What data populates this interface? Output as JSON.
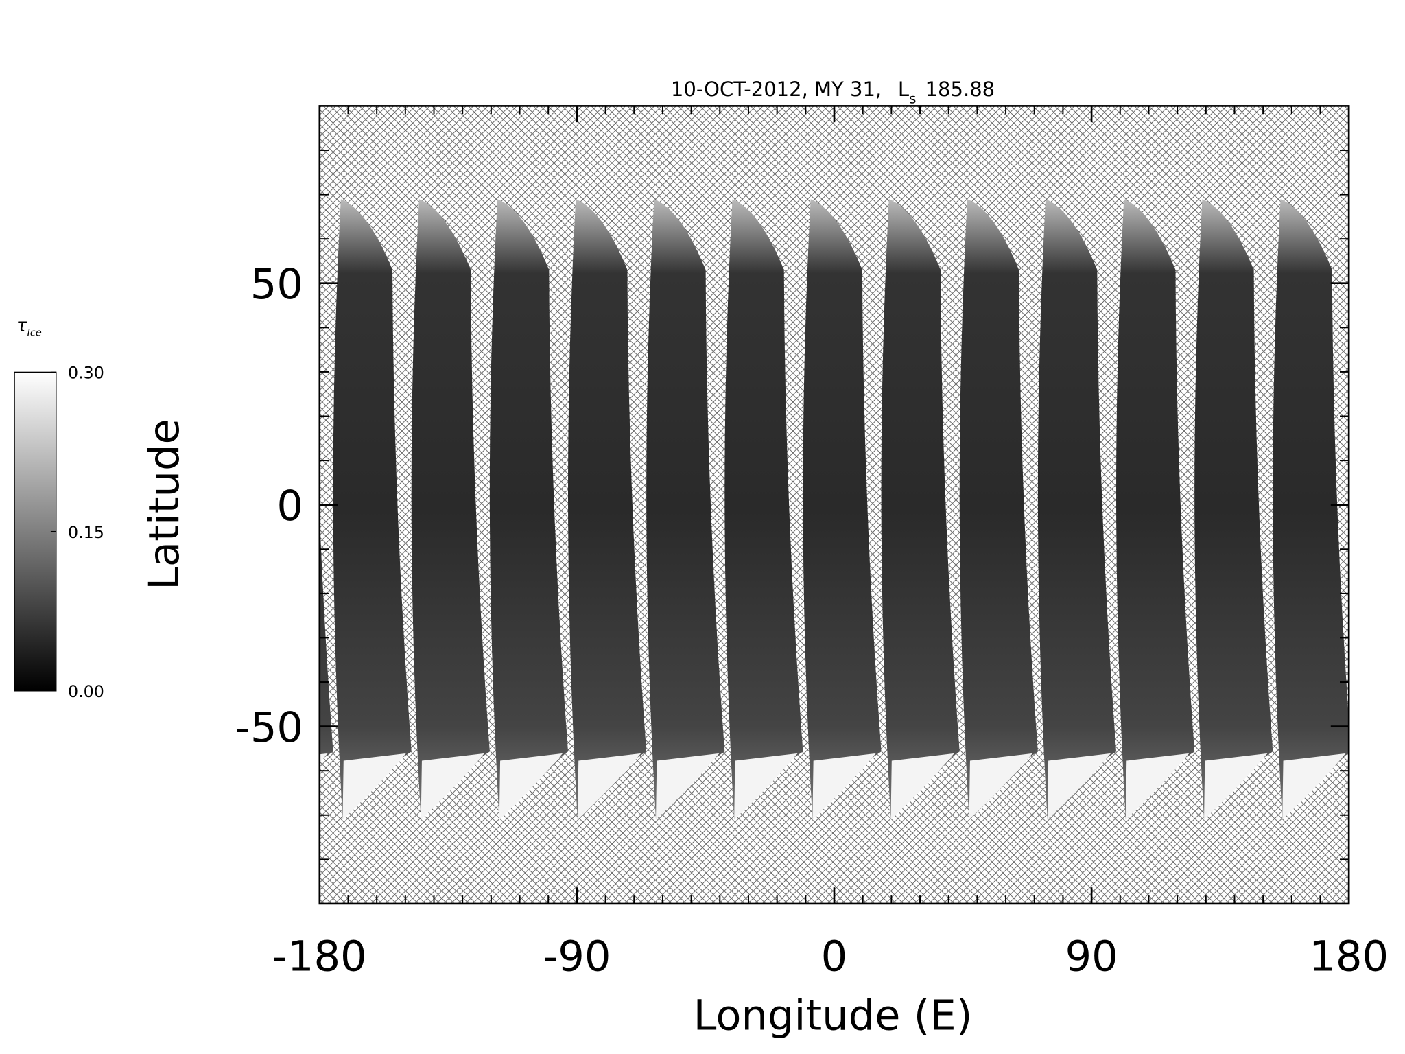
{
  "chart_data": {
    "type": "heatmap",
    "title": "10-OCT-2012, MY 31,",
    "title_symbol": "L",
    "title_symbol_subscript": "s",
    "title_value": "185.88",
    "x_label": "Longitude (E)",
    "y_label": "Latitude",
    "xlim": [
      -180,
      180
    ],
    "ylim": [
      -90,
      90
    ],
    "xticks": [
      -180,
      -90,
      0,
      90,
      180
    ],
    "yticks": [
      -50,
      0,
      50
    ],
    "minor_xticks": [
      -170,
      -160,
      -150,
      -140,
      -130,
      -120,
      -110,
      -100,
      -80,
      -70,
      -60,
      -50,
      -40,
      -30,
      -20,
      -10,
      10,
      20,
      30,
      40,
      50,
      60,
      70,
      80,
      100,
      110,
      120,
      130,
      140,
      150,
      160,
      170
    ],
    "minor_yticks": [
      -80,
      -70,
      -60,
      -40,
      -30,
      -20,
      -10,
      10,
      20,
      30,
      40,
      60,
      70,
      80
    ],
    "colorbar": {
      "label": "τ",
      "label_subscript": "Ice",
      "lim": [
        0,
        0.3
      ],
      "ticks": [
        {
          "value": 0,
          "label": "0.00"
        },
        {
          "value": 0.15,
          "label": "0.15"
        },
        {
          "value": 0.3,
          "label": "0.30"
        }
      ]
    }
  }
}
